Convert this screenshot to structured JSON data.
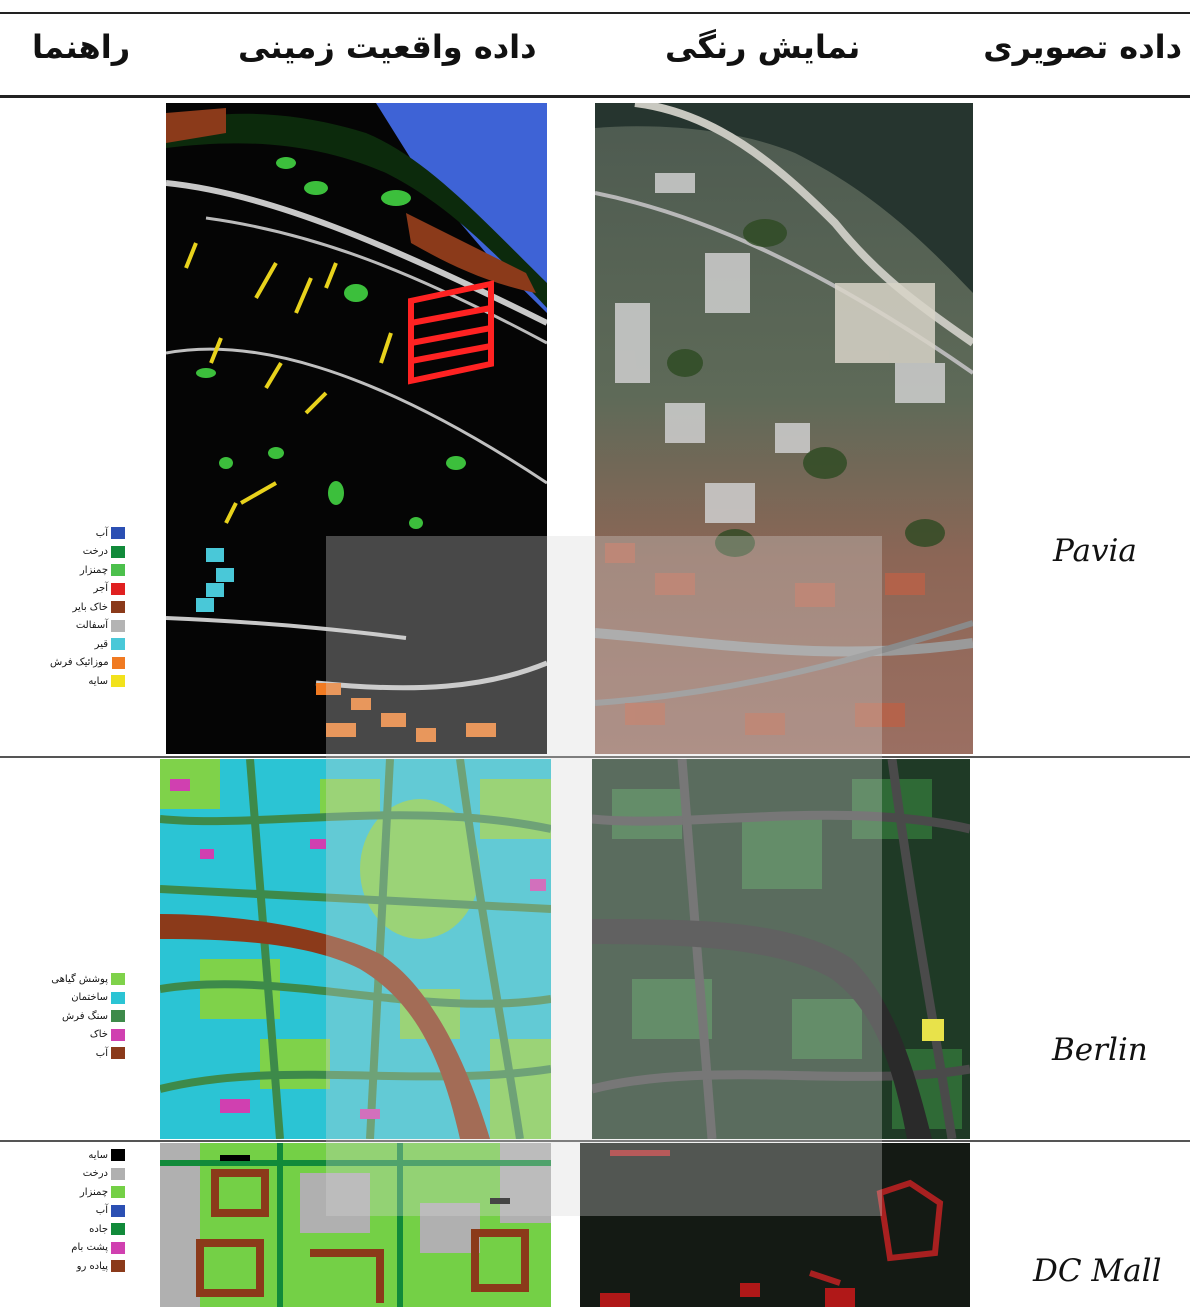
{
  "header": {
    "col_image": "داده تصویری",
    "col_color": "نمایش رنگی",
    "col_groundtruth": "داده واقعیت زمینی",
    "col_legend": "راهنما"
  },
  "rows": [
    {
      "dataset": "Pavia",
      "legend": [
        {
          "label": "آب",
          "color": "#2b4fb3"
        },
        {
          "label": "درخت",
          "color": "#118a3a"
        },
        {
          "label": "چمنزار",
          "color": "#4cc04c"
        },
        {
          "label": "آجر",
          "color": "#e02020"
        },
        {
          "label": "خاک بایر",
          "color": "#8b3a1a"
        },
        {
          "label": "آسفالت",
          "color": "#b4b4b4"
        },
        {
          "label": "قیر",
          "color": "#49c8d8"
        },
        {
          "label": "موزائیک فرش",
          "color": "#f07a22"
        },
        {
          "label": "سایه",
          "color": "#f2e21c"
        }
      ]
    },
    {
      "dataset": "Berlin",
      "legend": [
        {
          "label": "پوشش گیاهی",
          "color": "#7fd24a"
        },
        {
          "label": "ساختمان",
          "color": "#2bc4d4"
        },
        {
          "label": "سنگ فرش",
          "color": "#3d8a4a"
        },
        {
          "label": "خاک",
          "color": "#d040b0"
        },
        {
          "label": "آب",
          "color": "#8b3a1a"
        }
      ]
    },
    {
      "dataset": "DC Mall",
      "legend": [
        {
          "label": "سایه",
          "color": "#000000"
        },
        {
          "label": "درخت",
          "color": "#b0b0b0"
        },
        {
          "label": "چمنزار",
          "color": "#74d046"
        },
        {
          "label": "آب",
          "color": "#2b4fb3"
        },
        {
          "label": "جاده",
          "color": "#118a3a"
        },
        {
          "label": "پشت بام",
          "color": "#d040b0"
        },
        {
          "label": "پیاده رو",
          "color": "#8b3a1a"
        }
      ]
    }
  ]
}
